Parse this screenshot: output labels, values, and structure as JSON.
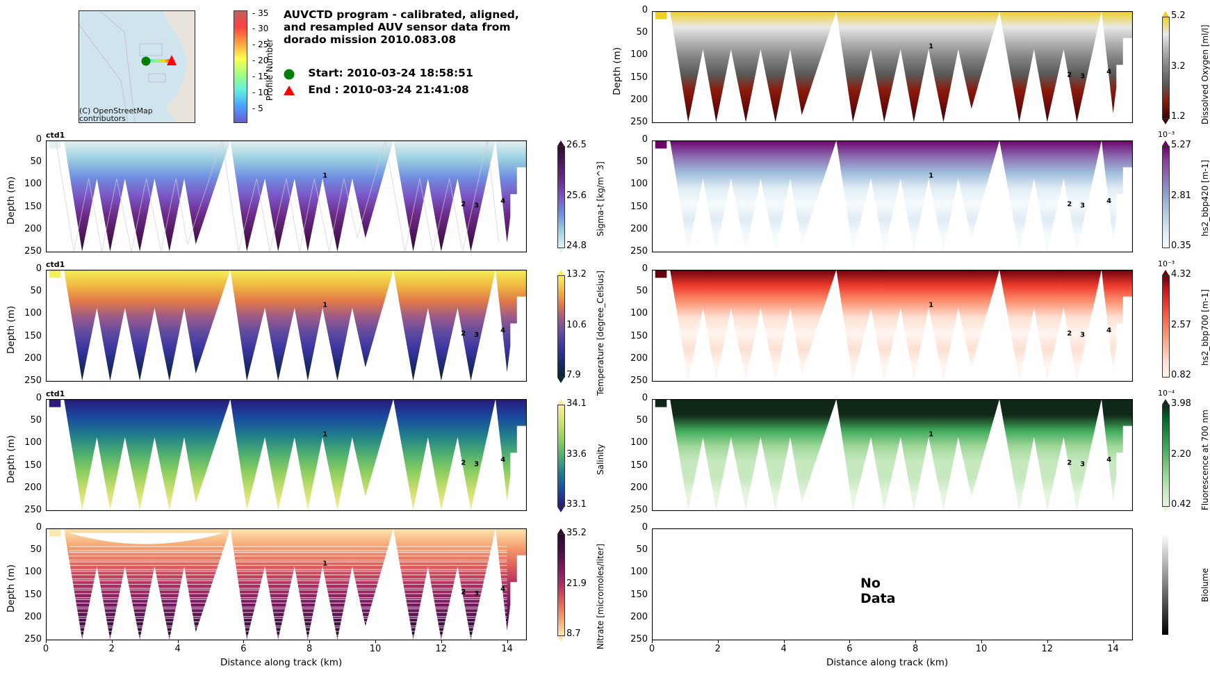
{
  "header": {
    "title_lines": [
      "AUVCTD program - calibrated, aligned,",
      "and resampled AUV sensor data from",
      "dorado mission 2010.083.08"
    ],
    "start_label": "Start: 2010-03-24 18:58:51",
    "end_label": "End  : 2010-03-24 21:41:08",
    "start_marker_color": "#008000",
    "end_marker_color": "#ff0000"
  },
  "map": {
    "credit_line1": "(C) OpenStreetMap",
    "credit_line2": "contributors",
    "water_color": "#cfe4ec"
  },
  "profile_colorbar": {
    "label": "Profile Number",
    "ticks": [
      "35",
      "30",
      "25",
      "20",
      "15",
      "10",
      "5"
    ],
    "range": [
      1,
      36
    ]
  },
  "chart_data": [
    {
      "type": "heatmap",
      "panel": "left-1",
      "tag": "ctd1",
      "variable": "Sigma-t [kg/m^3]",
      "colormap": "dense",
      "vmin": 24.8,
      "vmid": 25.6,
      "vmax": 26.5,
      "cbar_ticks": [
        "26.5",
        "25.6",
        "24.8"
      ],
      "xlabel": "",
      "ylabel": "Depth (m)",
      "xlim": [
        0,
        14.6
      ],
      "ylim": [
        250,
        0
      ],
      "yticks": [
        "0",
        "50",
        "100",
        "150",
        "200",
        "250"
      ],
      "annotations": [
        {
          "text": "1",
          "x": 8.4,
          "y": 83
        },
        {
          "text": "2",
          "x": 12.6,
          "y": 147
        },
        {
          "text": "3",
          "x": 13.0,
          "y": 150
        },
        {
          "text": "4",
          "x": 13.8,
          "y": 140
        }
      ],
      "colors": [
        "#e6f1f1",
        "#9ad0e0",
        "#6f8ee0",
        "#7a56c5",
        "#6c2b8a",
        "#52185f",
        "#2e0e2e"
      ]
    },
    {
      "type": "heatmap",
      "panel": "left-2",
      "tag": "ctd1",
      "variable": "Temperature [degree_Celsius]",
      "colormap": "thermal",
      "vmin": 7.9,
      "vmid": 10.6,
      "vmax": 13.2,
      "cbar_ticks": [
        "13.2",
        "10.6",
        "7.9"
      ],
      "xlabel": "",
      "ylabel": "Depth (m)",
      "xlim": [
        0,
        14.6
      ],
      "ylim": [
        250,
        0
      ],
      "yticks": [
        "0",
        "50",
        "100",
        "150",
        "200",
        "250"
      ],
      "annotations": [
        {
          "text": "1",
          "x": 8.4,
          "y": 83
        },
        {
          "text": "2",
          "x": 12.6,
          "y": 147
        },
        {
          "text": "3",
          "x": 13.0,
          "y": 150
        },
        {
          "text": "4",
          "x": 13.8,
          "y": 140
        }
      ],
      "colors": [
        "#0a2633",
        "#1a2a6e",
        "#3a35a0",
        "#5e4aa0",
        "#9a5a8a",
        "#e0784a",
        "#f0b840",
        "#f5f05a"
      ]
    },
    {
      "type": "heatmap",
      "panel": "left-3",
      "tag": "ctd1",
      "variable": "Salinity",
      "colormap": "haline",
      "vmin": 33.1,
      "vmid": 33.6,
      "vmax": 34.1,
      "cbar_ticks": [
        "34.1",
        "33.6",
        "33.1"
      ],
      "xlabel": "",
      "ylabel": "Depth (m)",
      "xlim": [
        0,
        14.6
      ],
      "ylim": [
        250,
        0
      ],
      "yticks": [
        "0",
        "50",
        "100",
        "150",
        "200",
        "250"
      ],
      "annotations": [
        {
          "text": "1",
          "x": 8.4,
          "y": 83
        },
        {
          "text": "2",
          "x": 12.6,
          "y": 147
        },
        {
          "text": "3",
          "x": 13.0,
          "y": 150
        },
        {
          "text": "4",
          "x": 13.8,
          "y": 140
        }
      ],
      "colors": [
        "#2a1a7a",
        "#1a4aa0",
        "#20808a",
        "#50b070",
        "#90d060",
        "#d0e070",
        "#f8ec98"
      ]
    },
    {
      "type": "heatmap",
      "panel": "left-4",
      "tag": "",
      "variable": "Nitrate [micromoles/liter]",
      "colormap": "matter",
      "vmin": 8.7,
      "vmid": 21.9,
      "vmax": 35.2,
      "cbar_ticks": [
        "35.2",
        "21.9",
        "8.7"
      ],
      "xlabel": "Distance along track (km)",
      "ylabel": "Depth (m)",
      "xlim": [
        0,
        14.6
      ],
      "ylim": [
        250,
        0
      ],
      "xticks": [
        "0",
        "2",
        "4",
        "6",
        "8",
        "10",
        "12",
        "14"
      ],
      "yticks": [
        "0",
        "50",
        "100",
        "150",
        "200",
        "250"
      ],
      "annotations": [
        {
          "text": "1",
          "x": 8.4,
          "y": 83
        },
        {
          "text": "2",
          "x": 12.6,
          "y": 147
        },
        {
          "text": "3",
          "x": 13.0,
          "y": 150
        },
        {
          "text": "4",
          "x": 13.8,
          "y": 140
        }
      ],
      "colors": [
        "#fde8b0",
        "#f4a070",
        "#e0605a",
        "#b03060",
        "#7a1a60",
        "#4a1048",
        "#2a0a30"
      ]
    },
    {
      "type": "heatmap",
      "panel": "right-0",
      "tag": "",
      "variable": "Dissolved Oxygen [ml/l]",
      "colormap": "oxy",
      "vmin": 1.2,
      "vmid": 3.2,
      "vmax": 5.2,
      "cbar_ticks": [
        "5.2",
        "3.2",
        "1.2"
      ],
      "xlabel": "",
      "ylabel": "Depth (m)",
      "xlim": [
        0,
        14.6
      ],
      "ylim": [
        250,
        0
      ],
      "yticks": [
        "0",
        "50",
        "100",
        "150",
        "200",
        "250"
      ],
      "annotations": [
        {
          "text": "1",
          "x": 8.4,
          "y": 83
        },
        {
          "text": "2",
          "x": 12.6,
          "y": 147
        },
        {
          "text": "3",
          "x": 13.0,
          "y": 150
        },
        {
          "text": "4",
          "x": 13.8,
          "y": 140
        }
      ],
      "colors": [
        "#f0d020",
        "#e8e8e8",
        "#b0b0b0",
        "#808080",
        "#585858",
        "#8a1a0a",
        "#6a0a0a",
        "#3a0505"
      ]
    },
    {
      "type": "heatmap",
      "panel": "right-1",
      "tag": "",
      "variable": "hs2_bbp420 [m-1]",
      "colormap": "BuPu",
      "scale_label": "10⁻³",
      "vmin": 0.35,
      "vmid": 2.81,
      "vmax": 5.27,
      "cbar_ticks": [
        "5.27",
        "2.81",
        "0.35"
      ],
      "xlabel": "",
      "ylabel": "",
      "xlim": [
        0,
        14.6
      ],
      "ylim": [
        250,
        0
      ],
      "yticks": [
        "0",
        "50",
        "100",
        "150",
        "200",
        "250"
      ],
      "annotations": [
        {
          "text": "1",
          "x": 8.4,
          "y": 83
        },
        {
          "text": "2",
          "x": 12.6,
          "y": 147
        },
        {
          "text": "3",
          "x": 13.0,
          "y": 150
        },
        {
          "text": "4",
          "x": 13.8,
          "y": 140
        }
      ],
      "colors": [
        "#f5fbfd",
        "#e0ecf4",
        "#bfd3e6",
        "#9ebcda",
        "#8c96c6",
        "#8c6bb1",
        "#88419d",
        "#6e016b"
      ]
    },
    {
      "type": "heatmap",
      "panel": "right-2",
      "tag": "",
      "variable": "hs2_bbp700 [m-1]",
      "colormap": "Reds",
      "scale_label": "10⁻³",
      "vmin": 0.82,
      "vmid": 2.57,
      "vmax": 4.32,
      "cbar_ticks": [
        "4.32",
        "2.57",
        "0.82"
      ],
      "xlabel": "",
      "ylabel": "",
      "xlim": [
        0,
        14.6
      ],
      "ylim": [
        250,
        0
      ],
      "yticks": [
        "0",
        "50",
        "100",
        "150",
        "200",
        "250"
      ],
      "annotations": [
        {
          "text": "1",
          "x": 8.4,
          "y": 83
        },
        {
          "text": "2",
          "x": 12.6,
          "y": 147
        },
        {
          "text": "3",
          "x": 13.0,
          "y": 150
        },
        {
          "text": "4",
          "x": 13.8,
          "y": 140
        }
      ],
      "colors": [
        "#fff5f0",
        "#fee0d2",
        "#fcbba1",
        "#fc9272",
        "#fb6a4a",
        "#ef3b2c",
        "#cb181d",
        "#67000d"
      ]
    },
    {
      "type": "heatmap",
      "panel": "right-3",
      "tag": "",
      "variable": "Fluorescence at 700 nm",
      "colormap": "Greens",
      "scale_label": "10⁻⁴",
      "vmin": 0.42,
      "vmid": 2.2,
      "vmax": 3.98,
      "cbar_ticks": [
        "3.98",
        "2.20",
        "0.42"
      ],
      "xlabel": "",
      "ylabel": "",
      "xlim": [
        0,
        14.6
      ],
      "ylim": [
        250,
        0
      ],
      "yticks": [
        "0",
        "50",
        "100",
        "150",
        "200",
        "250"
      ],
      "annotations": [
        {
          "text": "1",
          "x": 8.4,
          "y": 83
        },
        {
          "text": "2",
          "x": 12.6,
          "y": 147
        },
        {
          "text": "3",
          "x": 13.0,
          "y": 150
        },
        {
          "text": "4",
          "x": 13.8,
          "y": 140
        }
      ],
      "colors": [
        "#e5f5e0",
        "#c7e9c0",
        "#a1d99b",
        "#74c476",
        "#41ab5d",
        "#238b45",
        "#006d2c",
        "#102818"
      ]
    },
    {
      "type": "heatmap",
      "panel": "right-4",
      "tag": "",
      "variable": "Biolume",
      "colormap": "gray",
      "no_data_text": "No Data",
      "cbar_ticks": [],
      "xlabel": "Distance along track (km)",
      "ylabel": "",
      "xlim": [
        0,
        14.6
      ],
      "ylim": [
        250,
        0
      ],
      "xticks": [
        "0",
        "2",
        "4",
        "6",
        "8",
        "10",
        "12",
        "14"
      ],
      "yticks": [
        "0",
        "50",
        "100",
        "150",
        "200",
        "250"
      ],
      "annotations": [],
      "colors": [
        "#000000",
        "#ffffff"
      ]
    }
  ]
}
